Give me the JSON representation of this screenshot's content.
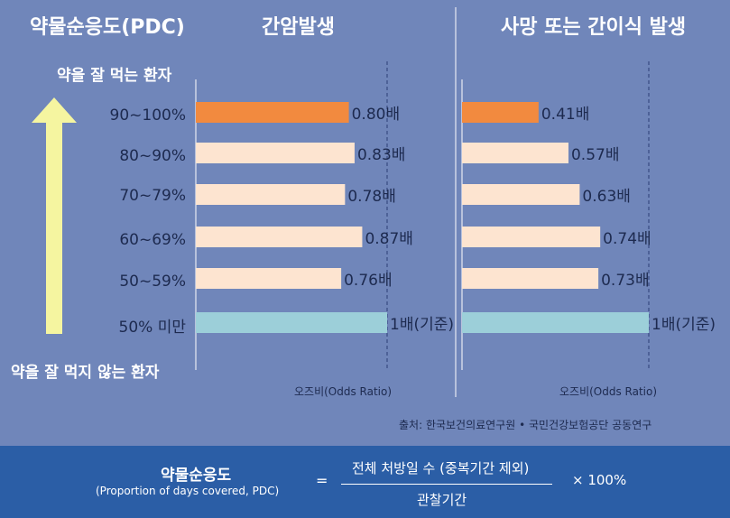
{
  "header": {
    "left_title": "약물순응도(PDC)",
    "panel1_title": "간암발생",
    "panel2_title": "사망 또는 간이식 발생"
  },
  "side": {
    "top_label": "약을 잘 먹는 환자",
    "bottom_label": "약을 잘 먹지 않는 환자"
  },
  "chart_data": [
    {
      "type": "bar",
      "orientation": "horizontal",
      "title": "간암발생",
      "categories": [
        "90~100%",
        "80~90%",
        "70~79%",
        "60~69%",
        "50~59%",
        "50% 미만"
      ],
      "values": [
        0.8,
        0.83,
        0.78,
        0.87,
        0.76,
        1.0
      ],
      "value_labels": [
        "0.80배",
        "0.83배",
        "0.78배",
        "0.87배",
        "0.76배",
        "1배(기준)"
      ],
      "bar_colors": [
        "#f28a3f",
        "#fde4d0",
        "#fde4d0",
        "#fde4d0",
        "#fde4d0",
        "#9ccfd9"
      ],
      "xlabel": "오즈비(Odds Ratio)",
      "ylabel": "약물순응도(PDC)",
      "xlim": [
        0,
        1.0
      ],
      "reference_line": 1.0
    },
    {
      "type": "bar",
      "orientation": "horizontal",
      "title": "사망 또는 간이식 발생",
      "categories": [
        "90~100%",
        "80~90%",
        "70~79%",
        "60~69%",
        "50~59%",
        "50% 미만"
      ],
      "values": [
        0.41,
        0.57,
        0.63,
        0.74,
        0.73,
        1.0
      ],
      "value_labels": [
        "0.41배",
        "0.57배",
        "0.63배",
        "0.74배",
        "0.73배",
        "1배(기준)"
      ],
      "bar_colors": [
        "#f28a3f",
        "#fde4d0",
        "#fde4d0",
        "#fde4d0",
        "#fde4d0",
        "#9ccfd9"
      ],
      "xlabel": "오즈비(Odds Ratio)",
      "ylabel": "약물순응도(PDC)",
      "xlim": [
        0,
        1.0
      ],
      "reference_line": 1.0
    }
  ],
  "source": "출처: 한국보건의료연구원 • 국민건강보험공단 공동연구",
  "formula": {
    "lhs_title": "약물순응도",
    "lhs_sub": "(Proportion of days covered, PDC)",
    "equals": "=",
    "numerator": "전체 처방일 수 (중복기간 제외)",
    "denominator": "관찰기간",
    "multiplier": "× 100%"
  },
  "colors": {
    "background": "#7086ba",
    "bottom_panel": "#2b5ea6",
    "highlight_bar": "#f28a3f",
    "normal_bar": "#fde4d0",
    "reference_bar": "#9ccfd9",
    "arrow": "#f5f5a0",
    "chart_text": "#1d2a4f",
    "white": "#ffffff"
  }
}
